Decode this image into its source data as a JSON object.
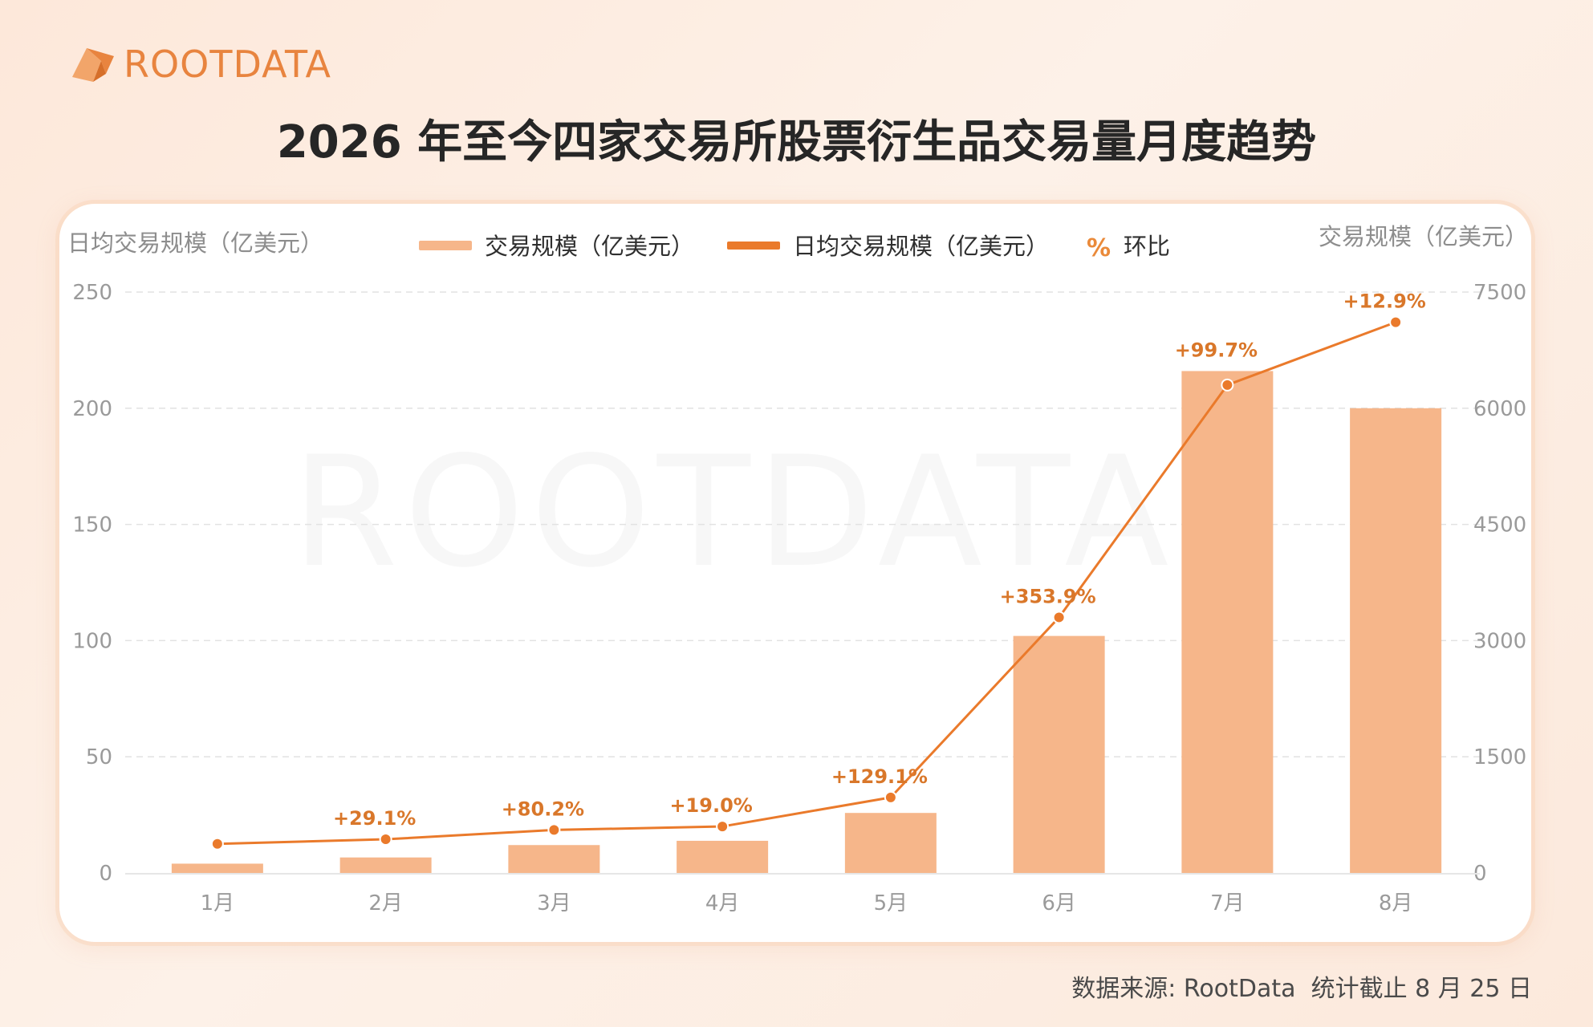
{
  "brand": {
    "name": "ROOTDATA",
    "watermark": "ROOTDATA"
  },
  "title": "2026 年至今四家交易所股票衍生品交易量月度趋势",
  "footer": {
    "source": "数据来源: RootData  统计截止 8 月 25 日"
  },
  "colors": {
    "bar": "#f6b68a",
    "line": "#ea7a2b",
    "label": "#d9772a",
    "grid": "#e2e2e2"
  },
  "chart_data": {
    "type": "bar+line",
    "categories": [
      "1月",
      "2月",
      "3月",
      "4月",
      "5月",
      "6月",
      "7月",
      "8月"
    ],
    "left_axis": {
      "label": "日均交易规模（亿美元）",
      "ticks": [
        "0",
        "50",
        "100",
        "150",
        "200",
        "250"
      ],
      "range": [
        0,
        250
      ]
    },
    "right_axis": {
      "label": "交易规模（亿美元）",
      "ticks": [
        "0",
        "1500",
        "3000",
        "4500",
        "6000",
        "7500"
      ],
      "range": [
        0,
        7500
      ]
    },
    "legend": {
      "position": "top",
      "items": [
        "交易规模（亿美元）",
        "日均交易规模（亿美元）",
        "环比"
      ],
      "pct_symbol": "%"
    },
    "series": [
      {
        "name": "交易规模（亿美元）",
        "type": "bar",
        "axis": "right",
        "values": [
          120,
          200,
          360,
          415,
          775,
          3060,
          6480,
          6000
        ]
      },
      {
        "name": "日均交易规模（亿美元）",
        "type": "line",
        "axis": "left",
        "values": [
          12.5,
          14.5,
          18.5,
          20,
          32.5,
          110,
          210,
          237
        ]
      }
    ],
    "mom_labels": [
      "",
      "+29.1%",
      "+80.2%",
      "+19.0%",
      "+129.1%",
      "+353.9%",
      "+99.7%",
      "+12.9%"
    ],
    "grid": true
  }
}
